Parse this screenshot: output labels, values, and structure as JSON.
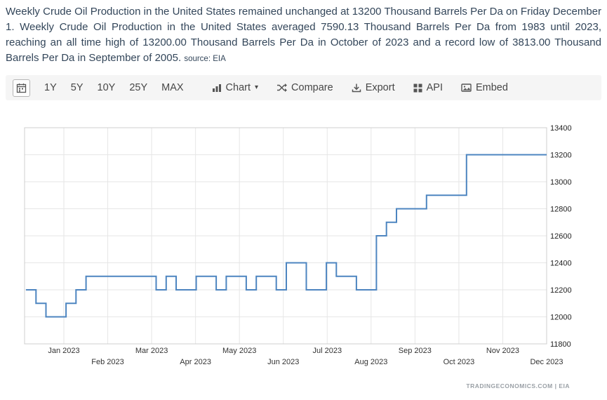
{
  "description": {
    "text": "Weekly Crude Oil Production in the United States remained unchanged at 13200 Thousand Barrels Per Da on Friday December 1. Weekly Crude Oil Production in the United States averaged 7590.13 Thousand Barrels Per Da from 1983 until 2023, reaching an all time high of 13200.00 Thousand Barrels Per Da in October of 2023 and a record low of 3813.00 Thousand Barrels Per Da in September of 2005.",
    "source_label": "source: EIA"
  },
  "toolbar": {
    "range_buttons": [
      "1Y",
      "5Y",
      "10Y",
      "25Y",
      "MAX"
    ],
    "chart_menu": {
      "label": "Chart",
      "caret": "▾"
    },
    "compare_label": "Compare",
    "export_label": "Export",
    "api_label": "API",
    "embed_label": "Embed"
  },
  "icons": {
    "calendar-icon": "date range picker",
    "bar-chart-icon": "chart type menu",
    "caret-down-icon": "▾",
    "compare-icon": "crossed arrows",
    "export-icon": "download arrow",
    "api-icon": "grid of squares",
    "embed-icon": "picture frame"
  },
  "chart_data": {
    "type": "line",
    "title": "Weekly Crude Oil Production in the United States",
    "ylabel": "Thousand Barrels Per Da",
    "line_color": "#4d85c0",
    "grid": true,
    "legend": "none",
    "step": true,
    "ylim": [
      11800,
      13400
    ],
    "yticks": [
      11800,
      12000,
      12200,
      12400,
      12600,
      12800,
      13000,
      13200,
      13400
    ],
    "x_tick_labels_row1": [
      "Jan 2023",
      "Mar 2023",
      "May 2023",
      "Jul 2023",
      "Sep 2023",
      "Nov 2023"
    ],
    "x_tick_labels_row2": [
      "Feb 2023",
      "Apr 2023",
      "Jun 2023",
      "Aug 2023",
      "Oct 2023",
      "Dec 2023"
    ],
    "values": [
      12200,
      12100,
      12000,
      12000,
      12100,
      12200,
      12300,
      12300,
      12300,
      12300,
      12300,
      12300,
      12300,
      12200,
      12300,
      12200,
      12200,
      12300,
      12300,
      12200,
      12300,
      12300,
      12200,
      12300,
      12300,
      12200,
      12400,
      12400,
      12200,
      12200,
      12400,
      12300,
      12300,
      12200,
      12200,
      12600,
      12700,
      12800,
      12800,
      12800,
      12900,
      12900,
      12900,
      12900,
      13200,
      13200,
      13200,
      13200,
      13200,
      13200,
      13200,
      13200,
      13200
    ]
  },
  "watermark": "TRADINGECONOMICS.COM | EIA"
}
